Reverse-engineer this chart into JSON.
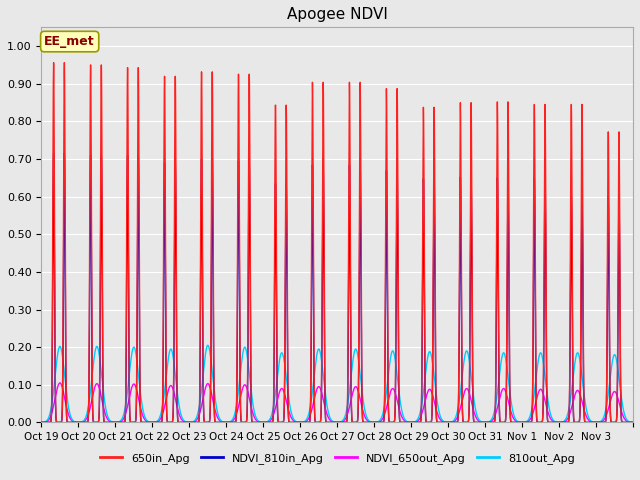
{
  "title": "Apogee NDVI",
  "title_fontsize": 11,
  "background_color": "#e8e8e8",
  "plot_bg_color": "#e8e8e8",
  "ylim": [
    0.0,
    1.05
  ],
  "yticks": [
    0.0,
    0.1,
    0.2,
    0.3,
    0.4,
    0.5,
    0.6,
    0.7,
    0.8,
    0.9,
    1.0
  ],
  "xtick_labels": [
    "Oct 19",
    "Oct 20",
    "Oct 21",
    "Oct 22",
    "Oct 23",
    "Oct 24",
    "Oct 25",
    "Oct 26",
    "Oct 27",
    "Oct 28",
    "Oct 29",
    "Oct 30",
    "Oct 31",
    "Nov 1",
    "Nov 2",
    "Nov 3"
  ],
  "num_days": 16,
  "color_650in": "#ff2020",
  "color_810in": "#0000cc",
  "color_650out": "#ff00ff",
  "color_810out": "#00ccff",
  "peak_650in": [
    0.956,
    0.95,
    0.943,
    0.92,
    0.932,
    0.926,
    0.844,
    0.905,
    0.905,
    0.888,
    0.838,
    0.85,
    0.852,
    0.845,
    0.845,
    0.772
  ],
  "peak_810in": [
    0.715,
    0.71,
    0.71,
    0.69,
    0.7,
    0.695,
    0.635,
    0.685,
    0.685,
    0.67,
    0.648,
    0.652,
    0.65,
    0.65,
    0.605,
    0.6
  ],
  "peak_650out": [
    0.105,
    0.103,
    0.102,
    0.098,
    0.103,
    0.1,
    0.09,
    0.095,
    0.095,
    0.09,
    0.088,
    0.09,
    0.09,
    0.088,
    0.085,
    0.082
  ],
  "peak_810out": [
    0.202,
    0.202,
    0.2,
    0.195,
    0.205,
    0.2,
    0.185,
    0.195,
    0.195,
    0.19,
    0.188,
    0.19,
    0.185,
    0.185,
    0.185,
    0.18
  ],
  "annotation_text": "EE_met",
  "legend_labels": [
    "650in_Apg",
    "NDVI_810in_Apg",
    "NDVI_650out_Apg",
    "810out_Apg"
  ],
  "legend_colors": [
    "#ff2020",
    "#0000cc",
    "#ff00ff",
    "#00ccff"
  ],
  "grid_color": "#ffffff",
  "line_width": 1.0
}
